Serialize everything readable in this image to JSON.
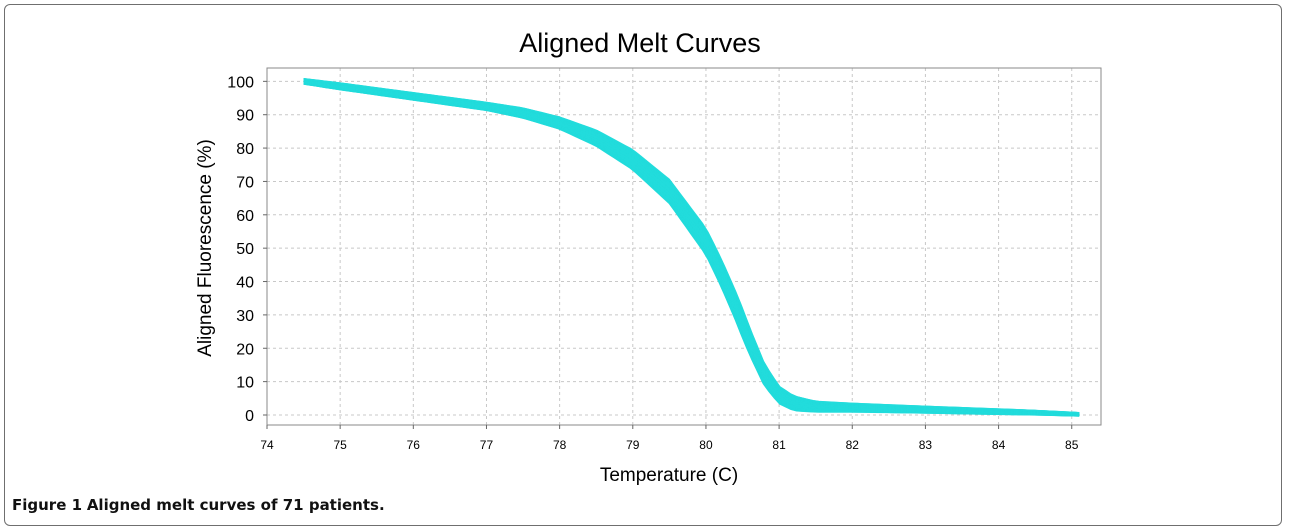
{
  "caption": {
    "label": "Figure 1",
    "text": "Aligned melt curves of 71 patients."
  },
  "chart_data": {
    "type": "line",
    "title": "Aligned Melt Curves",
    "xlabel": "Temperature (C)",
    "ylabel": "Aligned Fluorescence (%)",
    "xlim": [
      74,
      85.4
    ],
    "ylim": [
      -3,
      104
    ],
    "xticks": [
      74,
      75,
      76,
      77,
      78,
      79,
      80,
      81,
      82,
      83,
      84,
      85
    ],
    "yticks": [
      0,
      10,
      20,
      30,
      40,
      50,
      60,
      70,
      80,
      90,
      100
    ],
    "grid": true,
    "legend": "none",
    "series_color": "#22dcdc",
    "curve_count": 71,
    "median_curve": {
      "x": [
        74.5,
        75.0,
        75.5,
        76.0,
        76.5,
        77.0,
        77.5,
        78.0,
        78.5,
        79.0,
        79.5,
        80.0,
        80.2,
        80.4,
        80.6,
        80.8,
        81.0,
        81.2,
        81.5,
        82.0,
        82.5,
        83.0,
        83.5,
        84.0,
        84.5,
        85.1
      ],
      "y": [
        100,
        98.5,
        97,
        95.5,
        94,
        92.5,
        90.5,
        87.5,
        83,
        76.5,
        67,
        52,
        43,
        33,
        22,
        12,
        6,
        3.5,
        2.5,
        2.2,
        1.9,
        1.6,
        1.3,
        1.0,
        0.7,
        0.2
      ]
    },
    "band_halfwidth": {
      "x": [
        74.5,
        75.0,
        76.0,
        77.0,
        78.0,
        79.0,
        79.5,
        80.0,
        80.5,
        81.0,
        81.5,
        82.0,
        83.0,
        84.0,
        85.1
      ],
      "dy": [
        0.8,
        1.0,
        1.1,
        1.2,
        1.8,
        3.0,
        3.6,
        4.0,
        4.4,
        2.6,
        1.6,
        1.3,
        1.0,
        0.8,
        0.5
      ]
    }
  }
}
